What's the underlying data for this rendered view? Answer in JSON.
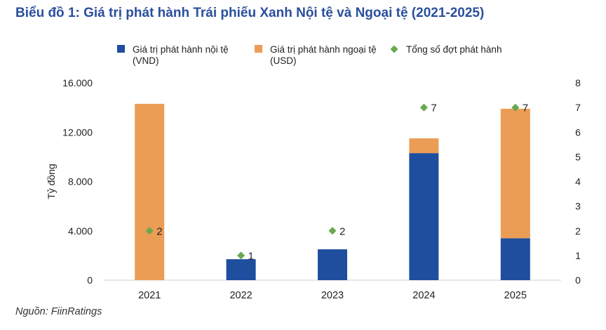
{
  "title": "Biểu đồ 1: Giá trị phát hành Trái phiếu Xanh Nội tệ và Ngoại tệ (2021-2025)",
  "source": "Nguồn: FiinRatings",
  "colors": {
    "domestic": "#1f4e9e",
    "foreign": "#eb9d55",
    "count": "#6aa84f",
    "title": "#2a4f9c"
  },
  "chart_data": {
    "type": "bar",
    "stacked": true,
    "categories": [
      "2021",
      "2022",
      "2023",
      "2024",
      "2025"
    ],
    "series": [
      {
        "name": "Giá trị phát hành nội tệ (VND)",
        "legend_lines": [
          "Giá trị phát hành nội tệ",
          "(VND)"
        ],
        "values": [
          0,
          1700,
          2500,
          10300,
          3400
        ],
        "axis": "left",
        "marker": "bar"
      },
      {
        "name": "Giá trị phát hành ngoại tệ (USD)",
        "legend_lines": [
          "Giá trị phát hành ngoại tệ",
          "(USD)"
        ],
        "values": [
          14300,
          0,
          0,
          1200,
          10500
        ],
        "axis": "left",
        "marker": "bar"
      },
      {
        "name": "Tổng số đợt phát hành",
        "legend_lines": [
          "Tổng số đợt phát hành"
        ],
        "values": [
          2,
          1,
          2,
          7,
          7
        ],
        "axis": "right",
        "marker": "diamond",
        "labels": [
          "2",
          "1",
          "2",
          "7",
          "7"
        ]
      }
    ],
    "ylabel": "Tỷ đồng",
    "ylim": [
      0,
      16000
    ],
    "yticks": [
      "0",
      "4.000",
      "8.000",
      "12.000",
      "16.000"
    ],
    "y2lim": [
      0,
      8
    ],
    "y2ticks": [
      "0",
      "1",
      "2",
      "3",
      "4",
      "5",
      "6",
      "7",
      "8"
    ],
    "grid": false,
    "legend_position": "top"
  }
}
